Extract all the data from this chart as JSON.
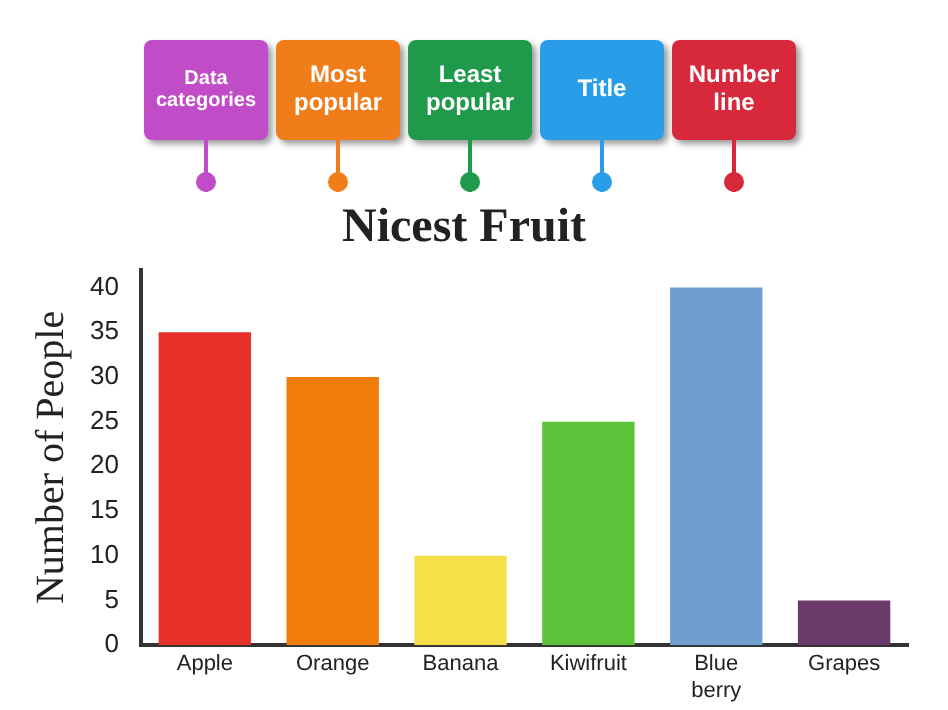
{
  "chart_data": {
    "type": "bar",
    "title": "Nicest Fruit",
    "ylabel": "Number of People",
    "categories": [
      "Apple",
      "Orange",
      "Banana",
      "Kiwifruit",
      "Blue berry",
      "Grapes"
    ],
    "values": [
      35,
      30,
      10,
      25,
      40,
      5
    ],
    "colors": [
      "#e8302a",
      "#f07d0a",
      "#f5e04a",
      "#5cc43a",
      "#6e9fd0",
      "#6b3a6b"
    ],
    "ylim": [
      0,
      42
    ],
    "yticks": [
      0,
      5,
      10,
      15,
      20,
      25,
      30,
      35,
      40
    ],
    "grid": false,
    "legend": false,
    "annotations": [
      "Data categories",
      "Most popular",
      "Least popular",
      "Title",
      "Number line"
    ]
  }
}
